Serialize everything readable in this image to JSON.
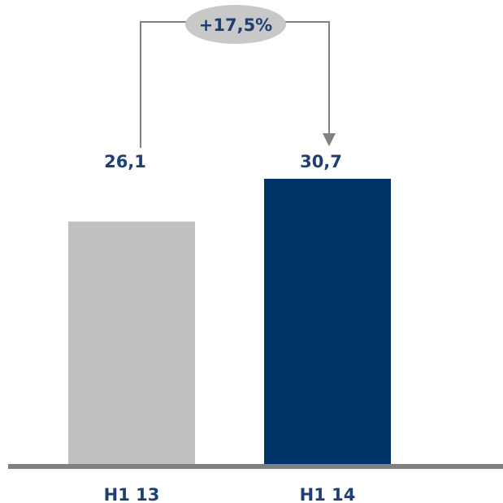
{
  "chart_data": {
    "type": "bar",
    "categories": [
      "H1 13",
      "H1 14"
    ],
    "values": [
      26.1,
      30.7
    ],
    "value_labels": [
      "26,1",
      "30,7"
    ],
    "change_label": "+17,5%",
    "title": "",
    "xlabel": "",
    "ylabel": "",
    "ylim": [
      0,
      30.7
    ],
    "grid": false,
    "legend": "none"
  },
  "colors": {
    "bar_previous": "#c0c0c0",
    "bar_current": "#003466",
    "label_text": "#1f3f73",
    "axis_line": "#7f7f7f",
    "connector": "#808080",
    "ellipse_fill": "#c8c8c8"
  }
}
